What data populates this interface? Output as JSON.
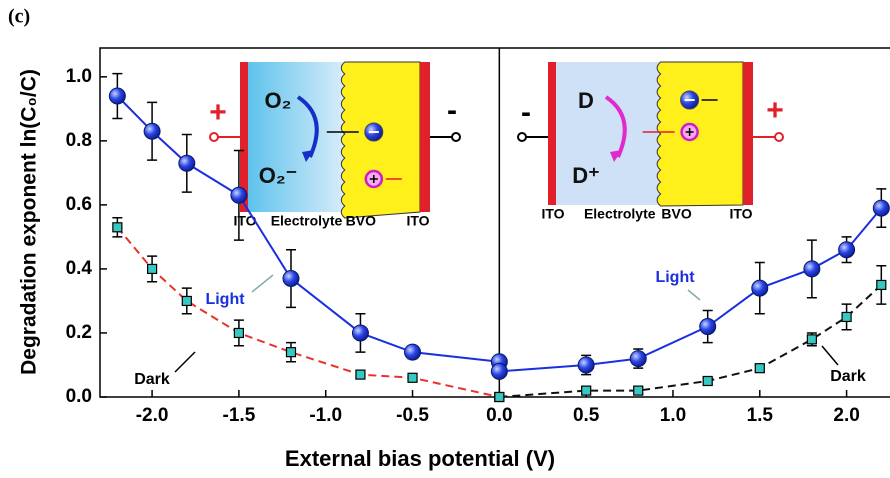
{
  "chart_data": {
    "type": "line",
    "panel_label": "(c)",
    "x_label": "External bias potential (V)",
    "y_label": "Degradation exponent ln(C₀/C)",
    "xlim": [
      -2.3,
      2.25
    ],
    "ylim": [
      0,
      1.09
    ],
    "xticks": [
      {
        "value": -2,
        "label": "-2.0"
      },
      {
        "value": -1.5,
        "label": "-1.5"
      },
      {
        "value": -1,
        "label": "-1.0"
      },
      {
        "value": -0.5,
        "label": "-0.5"
      },
      {
        "value": 0,
        "label": "0.0"
      },
      {
        "value": 0.5,
        "label": "0.5"
      },
      {
        "value": 1,
        "label": "1.0"
      },
      {
        "value": 1.5,
        "label": "1.5"
      },
      {
        "value": 2,
        "label": "2.0"
      }
    ],
    "yticks": [
      {
        "value": 0,
        "label": "0.0"
      },
      {
        "value": 0.2,
        "label": "0.2"
      },
      {
        "value": 0.4,
        "label": "0.4"
      },
      {
        "value": 0.6,
        "label": "0.6"
      },
      {
        "value": 0.8,
        "label": "0.8"
      },
      {
        "value": 1,
        "label": "1.0"
      }
    ],
    "vlines": [
      0
    ],
    "series": [
      {
        "name": "Light",
        "color": "#1a2fe0",
        "marker": "circle",
        "dash": false,
        "x": [
          -2.2,
          -2.0,
          -1.8,
          -1.5,
          -1.2,
          -0.8,
          -0.5,
          0
        ],
        "values": [
          0.94,
          0.83,
          0.73,
          0.63,
          0.37,
          0.2,
          0.14,
          0.11
        ],
        "errors": [
          0.07,
          0.09,
          0.09,
          0.14,
          0.09,
          0.06,
          0.02,
          0.01
        ]
      },
      {
        "name": "Dark",
        "color": "#e8332b",
        "marker": "square",
        "dash": true,
        "x": [
          -2.2,
          -2.0,
          -1.8,
          -1.5,
          -1.2,
          -0.8,
          -0.5,
          0
        ],
        "values": [
          0.53,
          0.4,
          0.3,
          0.2,
          0.14,
          0.07,
          0.06,
          0.0
        ],
        "errors": [
          0.03,
          0.04,
          0.04,
          0.04,
          0.03,
          0.01,
          0.01,
          0.005
        ]
      },
      {
        "name": "Light",
        "color": "#1a2fe0",
        "marker": "circle",
        "dash": false,
        "x": [
          0,
          0.5,
          0.8,
          1.2,
          1.5,
          1.8,
          2.0,
          2.2
        ],
        "values": [
          0.08,
          0.1,
          0.12,
          0.22,
          0.34,
          0.4,
          0.46,
          0.59
        ],
        "errors": [
          0.01,
          0.03,
          0.03,
          0.05,
          0.08,
          0.09,
          0.04,
          0.06
        ]
      },
      {
        "name": "Dark",
        "color": "#111111",
        "marker": "square",
        "dash": true,
        "x": [
          0,
          0.5,
          0.8,
          1.2,
          1.5,
          1.8,
          2.0,
          2.2
        ],
        "values": [
          0.0,
          0.02,
          0.02,
          0.05,
          0.09,
          0.18,
          0.25,
          0.35
        ],
        "errors": [
          0.005,
          0.01,
          0.01,
          0.01,
          0.01,
          0.02,
          0.04,
          0.06
        ]
      }
    ],
    "insets": [
      {
        "layers": [
          "ITO",
          "Electrolyte",
          "BVO",
          "ITO"
        ],
        "species": [
          "O₂",
          "O₂⁻"
        ],
        "signs": [
          "+",
          "-"
        ]
      },
      {
        "layers": [
          "ITO",
          "Electrolyte",
          "BVO",
          "ITO"
        ],
        "species": [
          "D",
          "D⁺"
        ],
        "signs": [
          "-",
          "+"
        ]
      }
    ]
  }
}
